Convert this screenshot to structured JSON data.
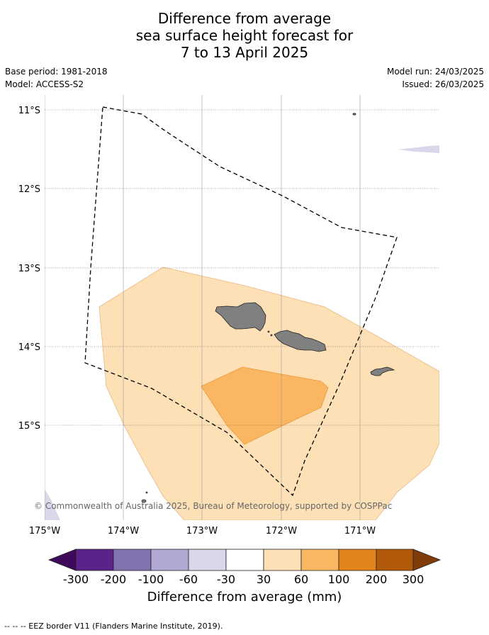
{
  "title_lines": [
    "Difference from average",
    "sea surface height forecast for",
    "7 to 13 April 2025"
  ],
  "base_period": "Base period: 1981-2018",
  "model": "Model: ACCESS-S2",
  "model_run": "Model run: 24/03/2025",
  "issued": "Issued: 26/03/2025",
  "map": {
    "lat_labels": [
      "11°S",
      "12°S",
      "13°S",
      "14°S",
      "15°S"
    ],
    "lon_labels": [
      "175°W",
      "174°W",
      "173°W",
      "172°W",
      "171°W"
    ],
    "extent": {
      "lon_min": -175.0,
      "lon_max": -170.0,
      "lat_max": -10.8,
      "lat_min": -16.2
    },
    "copyright": "© Commonwealth of Australia 2025, Bureau of Meteorology, supported by COSPPac",
    "colors": {
      "land": "#808080",
      "band_30_60": "#fde0b6",
      "band_60_100": "#fbb661",
      "band_neg_30_60": "#d8d8ea"
    }
  },
  "colorbar": {
    "ticks": [
      "-300",
      "-200",
      "-100",
      "-60",
      "-30",
      "30",
      "60",
      "100",
      "200",
      "300"
    ],
    "colors": [
      "#3f0a5c",
      "#5b2389",
      "#8172b0",
      "#b1a9d3",
      "#d8d8ea",
      "#ffffff",
      "#fde0b6",
      "#fbb661",
      "#e2841a",
      "#b15a09",
      "#7f3b08"
    ],
    "title": "Difference from average (mm)"
  },
  "footnote": "--  --  -- EEZ border V11 (Flanders Marine Institute, 2019)."
}
